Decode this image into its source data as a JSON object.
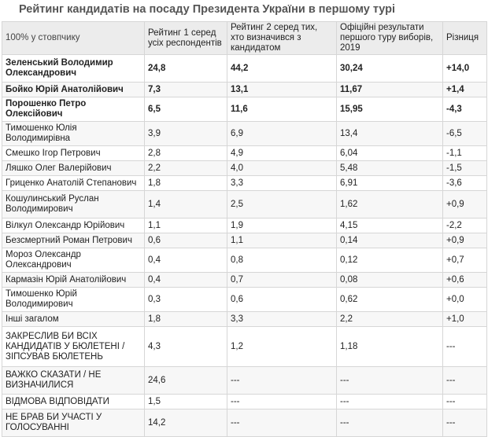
{
  "title": "Рейтинг кандидатів на посаду Президента України в першому турі",
  "header": {
    "label": "100% у стовпчику",
    "col2": "Рейтинг 1 серед усіх респондентів",
    "col3": "Рейтинг 2 серед тих, хто визначився з кандидатом",
    "col4": "Офіційні результати першого туру виборів, 2019",
    "col5": "Різниця"
  },
  "rows": [
    {
      "name": "Зеленський Володимир Олександрович",
      "r1": "24,8",
      "r2": "44,2",
      "official": "30,24",
      "diff": "+14,0",
      "bold": true
    },
    {
      "name": "Бойко Юрій Анатолійович",
      "r1": "7,3",
      "r2": "13,1",
      "official": "11,67",
      "diff": "+1,4",
      "bold": true
    },
    {
      "name": "Порошенко Петро Олексійович",
      "r1": "6,5",
      "r2": "11,6",
      "official": "15,95",
      "diff": "-4,3",
      "bold": true
    },
    {
      "name": "Тимошенко Юлія Володимирівна",
      "r1": "3,9",
      "r2": "6,9",
      "official": "13,4",
      "diff": "-6,5"
    },
    {
      "name": "Смешко Ігор Петрович",
      "r1": "2,8",
      "r2": "4,9",
      "official": "6,04",
      "diff": "-1,1"
    },
    {
      "name": "Ляшко Олег Валерійович",
      "r1": "2,2",
      "r2": "4,0",
      "official": "5,48",
      "diff": "-1,5"
    },
    {
      "name": "Гриценко Анатолій Степанович",
      "r1": "1,8",
      "r2": "3,3",
      "official": "6,91",
      "diff": "-3,6"
    },
    {
      "name": "Кошулинський Руслан Володимирович",
      "r1": "1,4",
      "r2": "2,5",
      "official": "1,62",
      "diff": "+0,9"
    },
    {
      "name": "Вілкул Олександр Юрійович",
      "r1": "1,1",
      "r2": "1,9",
      "official": "4,15",
      "diff": "-2,2"
    },
    {
      "name": "Безсмертний Роман Петрович",
      "r1": "0,6",
      "r2": "1,1",
      "official": "0,14",
      "diff": "+0,9"
    },
    {
      "name": "Мороз Олександр Олександрович",
      "r1": "0,4",
      "r2": "0,8",
      "official": "0,12",
      "diff": "+0,7"
    },
    {
      "name": "Кармазін Юрій Анатолійович",
      "r1": "0,4",
      "r2": "0,7",
      "official": "0,08",
      "diff": "+0,6"
    },
    {
      "name": "Тимошенко Юрій Володимирович",
      "r1": "0,3",
      "r2": "0,6",
      "official": "0,62",
      "diff": "+0,0"
    },
    {
      "name": "Інші загалом",
      "r1": "1,8",
      "r2": "3,3",
      "official": "2,2",
      "diff": "+1,0"
    },
    {
      "name": "ЗАКРЕСЛИВ БИ ВСІХ КАНДИДАТІВ У БЮЛЕТЕНІ / ЗІПСУВАВ БЮЛЕТЕНЬ",
      "r1": "4,3",
      "r2": "1,2",
      "official": "1,18",
      "diff": "---"
    },
    {
      "name": "ВАЖКО СКАЗАТИ / НЕ ВИЗНАЧИЛИСЯ",
      "r1": "24,6",
      "r2": "---",
      "official": "---",
      "diff": "---"
    },
    {
      "name": "ВІДМОВА ВІДПОВІДАТИ",
      "r1": "1,5",
      "r2": "---",
      "official": "---",
      "diff": "---"
    },
    {
      "name": "НЕ БРАВ БИ УЧАСТІ У ГОЛОСУВАННІ",
      "r1": "14,2",
      "r2": "---",
      "official": "---",
      "diff": "---"
    }
  ]
}
